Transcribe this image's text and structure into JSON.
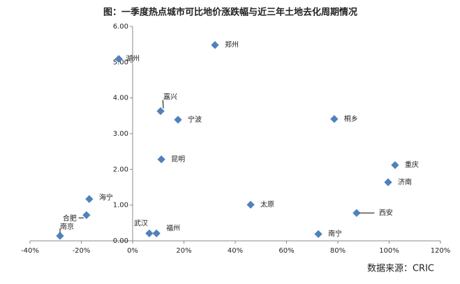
{
  "chart_data": {
    "type": "scatter",
    "title": "图：一季度热点城市可比地价涨跌幅与近三年土地去化周期情况",
    "source": "数据来源：CRIC",
    "color": "#4f81bd",
    "point_labels": [
      "湖州",
      "郑州",
      "嘉兴",
      "宁波",
      "桐乡",
      "昆明",
      "重庆",
      "济南",
      "海宁",
      "合肥",
      "太原",
      "西安",
      "南京",
      "武汉",
      "福州",
      "南宁"
    ],
    "x": [
      -5.4,
      32.1,
      10.9,
      17.7,
      78.6,
      11.2,
      102.3,
      99.6,
      -16.9,
      -18,
      46,
      87.3,
      -28.3,
      6.5,
      9.3,
      72.4
    ],
    "values": [
      5.09,
      5.48,
      3.63,
      3.39,
      3.41,
      2.28,
      2.12,
      1.64,
      1.17,
      0.72,
      1.01,
      0.78,
      0.14,
      0.21,
      0.21,
      0.19
    ],
    "xlim": [
      -40,
      120
    ],
    "xticks": [
      {
        "value": -40,
        "label": "-40%"
      },
      {
        "value": -20,
        "label": "-20%"
      },
      {
        "value": 0,
        "label": "0%"
      },
      {
        "value": 20,
        "label": "20%"
      },
      {
        "value": 40,
        "label": "40%"
      },
      {
        "value": 60,
        "label": "60%"
      },
      {
        "value": 80,
        "label": "80%"
      },
      {
        "value": 100,
        "label": "100%"
      },
      {
        "value": 120,
        "label": "120%"
      }
    ],
    "ylim": [
      0,
      6
    ],
    "yticks": [
      {
        "value": 0,
        "label": "0.00"
      },
      {
        "value": 1,
        "label": "1.00"
      },
      {
        "value": 2,
        "label": "2.00"
      },
      {
        "value": 3,
        "label": "3.00"
      },
      {
        "value": 4,
        "label": "4.00"
      },
      {
        "value": 5,
        "label": "5.00"
      },
      {
        "value": 6,
        "label": "6.00"
      }
    ]
  }
}
